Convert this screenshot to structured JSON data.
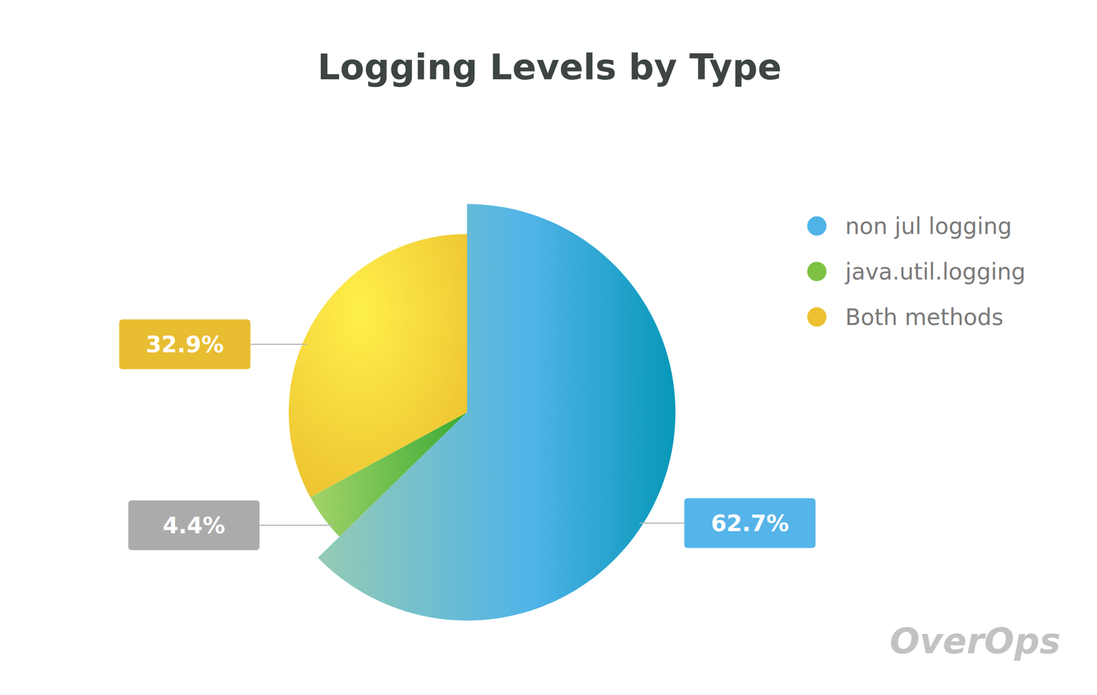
{
  "chart_data": {
    "type": "pie",
    "title": "Logging Levels by Type",
    "categories": [
      "non jul logging",
      "java.util.logging",
      "Both methods"
    ],
    "values": [
      62.7,
      4.4,
      32.9
    ],
    "value_labels": [
      "62.7%",
      "4.4%",
      "32.9%"
    ],
    "colors": [
      "#4fb3e8",
      "#7dc242",
      "#ecc030"
    ],
    "data_labels": true,
    "legend": "right",
    "watermark": "OverOps"
  }
}
